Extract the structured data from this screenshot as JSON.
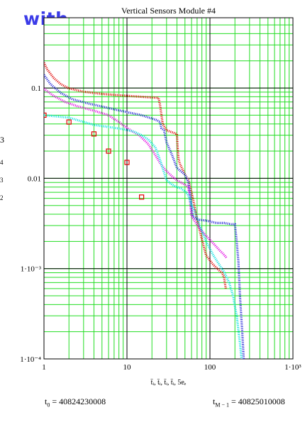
{
  "overlay_text": "with",
  "chart_data": {
    "type": "scatter",
    "title": "Vertical Sensors Module #4",
    "xlabel": "t̄ᵢ, t̄ᵢ, t̄ᵢ, t̄ᵢ, 5eₑ",
    "ylabel_fragments": [
      "3",
      "4",
      "3",
      "2"
    ],
    "x_scale": "log",
    "y_scale": "log",
    "xlim": [
      1,
      1000
    ],
    "ylim": [
      0.0001,
      0.6
    ],
    "grid": true,
    "x_ticks": [
      {
        "value": 1,
        "label": "1"
      },
      {
        "value": 10,
        "label": "10"
      },
      {
        "value": 100,
        "label": "100"
      },
      {
        "value": 1000,
        "label": "1·10³"
      }
    ],
    "y_ticks": [
      {
        "value": 0.1,
        "label": "0.1"
      },
      {
        "value": 0.01,
        "label": "0.01"
      },
      {
        "value": 0.001,
        "label": "1·10⁻³"
      },
      {
        "value": 0.0001,
        "label": "1·10⁻⁴"
      }
    ],
    "series": [
      {
        "color": "#e00000",
        "style": "line",
        "points": [
          [
            1.0,
            0.19
          ],
          [
            1.1,
            0.16
          ],
          [
            1.3,
            0.13
          ],
          [
            1.6,
            0.11
          ],
          [
            2.0,
            0.099
          ],
          [
            3.0,
            0.091
          ],
          [
            5.0,
            0.086
          ],
          [
            8.0,
            0.083
          ],
          [
            12.0,
            0.081
          ],
          [
            18.0,
            0.079
          ],
          [
            24.0,
            0.078
          ],
          [
            25.0,
            0.065
          ],
          [
            26.0,
            0.05
          ],
          [
            27.0,
            0.04
          ],
          [
            30.0,
            0.034
          ],
          [
            36.0,
            0.032
          ],
          [
            40.0,
            0.031
          ],
          [
            41.0,
            0.02
          ],
          [
            42.0,
            0.016
          ],
          [
            44.0,
            0.014
          ],
          [
            48.0,
            0.012
          ],
          [
            50.0,
            0.011
          ],
          [
            55.0,
            0.0095
          ],
          [
            60.0,
            0.007
          ],
          [
            65.0,
            0.005
          ],
          [
            70.0,
            0.0035
          ],
          [
            80.0,
            0.0021
          ],
          [
            90.0,
            0.0014
          ],
          [
            110.0,
            0.0011
          ],
          [
            130.0,
            0.00095
          ],
          [
            140.0,
            0.0009
          ],
          [
            148.0,
            0.0008
          ],
          [
            155.0,
            0.0006
          ]
        ]
      },
      {
        "color": "#1f1fd6",
        "style": "line",
        "points": [
          [
            1.0,
            0.14
          ],
          [
            1.2,
            0.11
          ],
          [
            1.6,
            0.088
          ],
          [
            2.2,
            0.075
          ],
          [
            3.5,
            0.067
          ],
          [
            6.0,
            0.06
          ],
          [
            10.0,
            0.054
          ],
          [
            15.0,
            0.05
          ],
          [
            20.0,
            0.046
          ],
          [
            23.0,
            0.044
          ],
          [
            25.0,
            0.042
          ],
          [
            26.0,
            0.036
          ],
          [
            28.0,
            0.034
          ],
          [
            30.0,
            0.025
          ],
          [
            35.0,
            0.018
          ],
          [
            40.0,
            0.013
          ],
          [
            50.0,
            0.011
          ],
          [
            55.0,
            0.009
          ],
          [
            58.0,
            0.0065
          ],
          [
            60.0,
            0.0048
          ],
          [
            62.0,
            0.0038
          ],
          [
            70.0,
            0.0035
          ],
          [
            90.0,
            0.0034
          ],
          [
            120.0,
            0.0032
          ],
          [
            150.0,
            0.0032
          ],
          [
            180.0,
            0.0031
          ],
          [
            200.0,
            0.0031
          ],
          [
            210.0,
            0.002
          ],
          [
            220.0,
            0.0012
          ],
          [
            230.0,
            0.0005
          ],
          [
            245.0,
            0.0002
          ],
          [
            255.0,
            0.0001
          ]
        ]
      },
      {
        "color": "#e000e0",
        "style": "line",
        "points": [
          [
            1.0,
            0.098
          ],
          [
            1.3,
            0.082
          ],
          [
            1.8,
            0.07
          ],
          [
            2.5,
            0.063
          ],
          [
            4.0,
            0.056
          ],
          [
            6.0,
            0.05
          ],
          [
            8.0,
            0.042
          ],
          [
            10.0,
            0.036
          ],
          [
            14.0,
            0.03
          ],
          [
            18.0,
            0.024
          ],
          [
            22.0,
            0.018
          ],
          [
            26.0,
            0.014
          ],
          [
            30.0,
            0.012
          ],
          [
            35.0,
            0.0105
          ],
          [
            40.0,
            0.0095
          ],
          [
            50.0,
            0.0085
          ],
          [
            55.0,
            0.008
          ],
          [
            58.0,
            0.0052
          ],
          [
            60.0,
            0.0038
          ],
          [
            65.0,
            0.0034
          ],
          [
            75.0,
            0.0028
          ],
          [
            90.0,
            0.0023
          ],
          [
            110.0,
            0.0019
          ],
          [
            130.0,
            0.0016
          ],
          [
            140.0,
            0.0015
          ],
          [
            150.0,
            0.0014
          ],
          [
            160.0,
            0.0013
          ]
        ]
      },
      {
        "color": "#00e0e0",
        "style": "line",
        "points": [
          [
            1.0,
            0.05
          ],
          [
            2.0,
            0.047
          ],
          [
            3.0,
            0.042
          ],
          [
            4.0,
            0.039
          ],
          [
            6.0,
            0.037
          ],
          [
            9.0,
            0.035
          ],
          [
            12.0,
            0.033
          ],
          [
            15.0,
            0.03
          ],
          [
            18.0,
            0.027
          ],
          [
            22.0,
            0.022
          ],
          [
            25.0,
            0.016
          ],
          [
            30.0,
            0.0095
          ],
          [
            35.0,
            0.0085
          ],
          [
            40.0,
            0.008
          ],
          [
            45.0,
            0.0077
          ],
          [
            50.0,
            0.0072
          ],
          [
            55.0,
            0.0065
          ],
          [
            60.0,
            0.005
          ],
          [
            65.0,
            0.0045
          ],
          [
            75.0,
            0.003
          ],
          [
            90.0,
            0.002
          ],
          [
            110.0,
            0.0014
          ],
          [
            130.0,
            0.0011
          ],
          [
            150.0,
            0.0009
          ],
          [
            170.0,
            0.0007
          ],
          [
            190.0,
            0.0005
          ],
          [
            210.0,
            0.0003
          ],
          [
            230.0,
            0.00015
          ],
          [
            240.0,
            0.0001
          ]
        ]
      },
      {
        "color": "#e00000",
        "style": "marker",
        "points": [
          [
            1.0,
            0.05
          ],
          [
            2.0,
            0.042
          ],
          [
            4.0,
            0.031
          ],
          [
            6.0,
            0.02
          ],
          [
            10.0,
            0.015
          ],
          [
            15.0,
            0.0062
          ]
        ]
      }
    ]
  },
  "stats": {
    "t0_prefix": "t",
    "t0_sub": "0",
    "t0_value": " = 40824230008",
    "tM_prefix": "t",
    "tM_sub": "M − 1",
    "tM_value": " = 40825010008"
  }
}
